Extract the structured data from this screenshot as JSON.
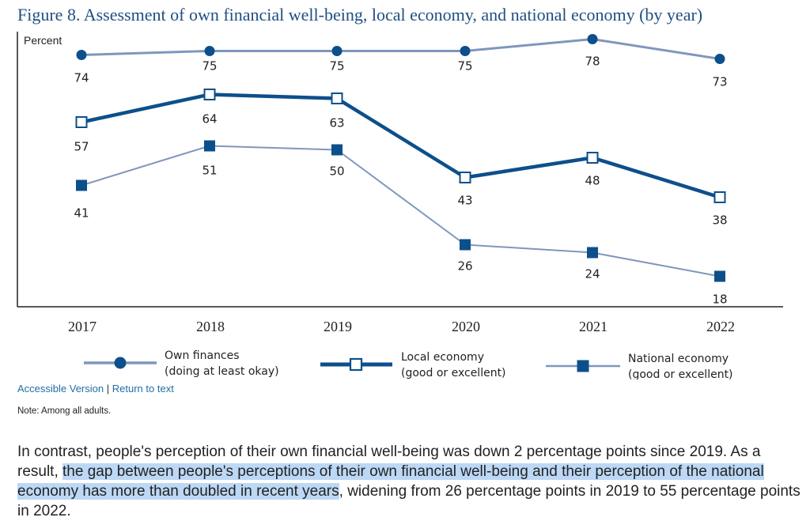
{
  "figure": {
    "title": "Figure 8. Assessment of own financial well-being, local economy, and national economy (by year)"
  },
  "chart_data": {
    "type": "line",
    "ylabel": "Percent",
    "x": [
      "2017",
      "2018",
      "2019",
      "2020",
      "2021",
      "2022"
    ],
    "ylim": [
      0,
      80
    ],
    "series": [
      {
        "name": "Own finances (doing at least okay)",
        "label_lines": [
          "Own finances",
          "(doing at least okay)"
        ],
        "values": [
          74,
          75,
          75,
          75,
          78,
          73
        ],
        "marker": "filled-circle",
        "color": "#7f97bd",
        "markerColor": "#0d4f8b"
      },
      {
        "name": "Local economy (good or excellent)",
        "label_lines": [
          "Local economy",
          "(good or excellent)"
        ],
        "values": [
          57,
          64,
          63,
          43,
          48,
          38
        ],
        "marker": "open-square",
        "color": "#0d4f8b",
        "markerColor": "#0d4f8b"
      },
      {
        "name": "National economy (good or excellent)",
        "label_lines": [
          "National economy",
          "(good or excellent)"
        ],
        "values": [
          41,
          51,
          50,
          26,
          24,
          18
        ],
        "marker": "filled-square",
        "color": "#7f97bd",
        "markerColor": "#0d4f8b"
      }
    ]
  },
  "links": {
    "accessible": "Accessible Version",
    "separator": "|",
    "return": "Return to text"
  },
  "note": "Note: Among all adults.",
  "paragraph": {
    "part1": "In contrast, people's perception of their own financial well-being was down 2 percentage points since 2019. As a result, ",
    "highlight": "the gap between people's perceptions of their own financial well-being and their perception of the national economy has more than doubled in recent years",
    "part2": ", widening from 26 percentage points in 2019 to 55 percentage points in 2022."
  }
}
